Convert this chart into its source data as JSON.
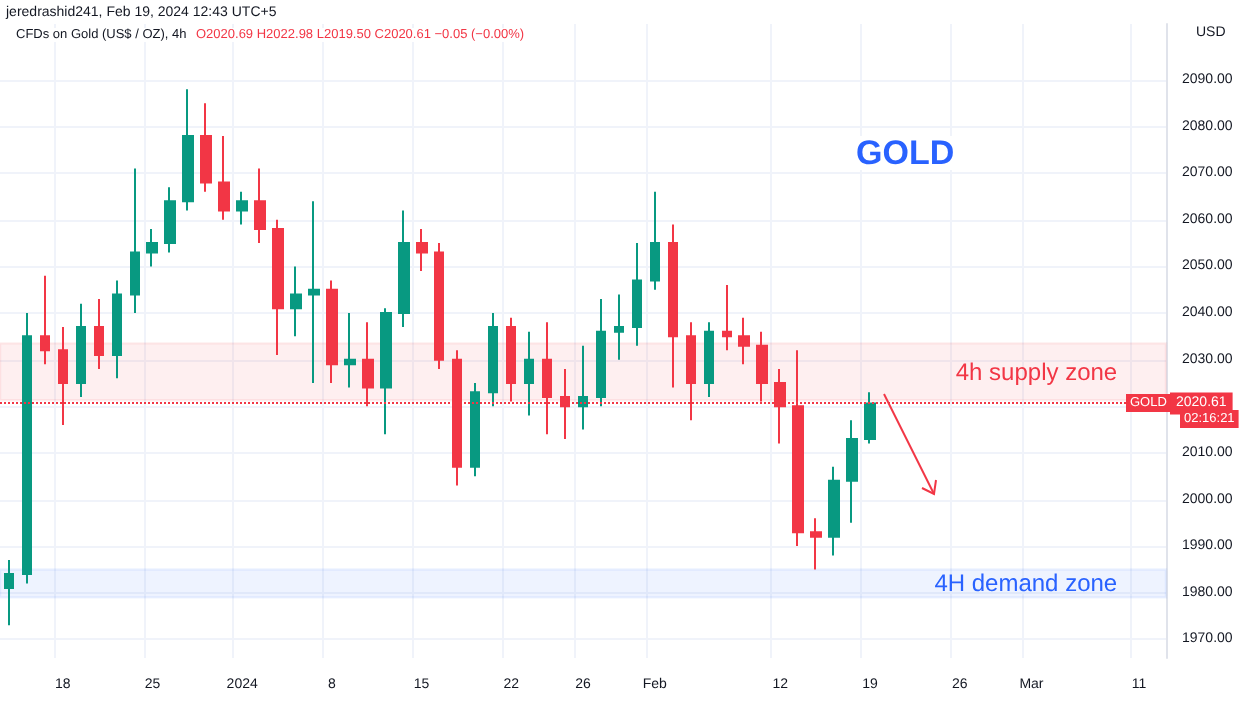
{
  "chart_data": {
    "type": "candlestick",
    "title": "CFDs on Gold (US$ / OZ), 4h",
    "annotations": [
      "jeredrashid241, Feb 19, 2024 12:43 UTC+5",
      "O2020.69 H2022.98 L2019.50 C2020.61 −0.05 (−0.00%)",
      "GOLD",
      "USD",
      "GOLD",
      "02:16:21"
    ],
    "categories": [
      null,
      null,
      null,
      "18",
      null,
      null,
      null,
      null,
      "25",
      null,
      null,
      null,
      null,
      "2024",
      null,
      null,
      null,
      null,
      "8",
      null,
      null,
      null,
      null,
      "15",
      null,
      null,
      null,
      null,
      "22",
      null,
      null,
      null,
      "26",
      null,
      null,
      null,
      "Feb",
      null,
      null,
      null,
      null,
      null,
      null,
      "12",
      null,
      null,
      null,
      null,
      "19",
      null,
      null,
      null,
      null,
      "26",
      null,
      null,
      null,
      "Mar",
      null,
      null,
      null,
      null,
      null,
      "11",
      null
    ],
    "ohlc": [
      [
        1981,
        1987,
        1973,
        1984
      ],
      [
        1984,
        2040,
        1982,
        2035
      ],
      [
        2035,
        2048,
        2029,
        2032
      ],
      [
        2032,
        2037,
        2016,
        2025
      ],
      [
        2025,
        2042,
        2022,
        2037
      ],
      [
        2037,
        2043,
        2028,
        2031
      ],
      [
        2031,
        2047,
        2026,
        2044
      ],
      [
        2044,
        2071,
        2040,
        2053
      ],
      [
        2053,
        2058,
        2050,
        2055
      ],
      [
        2055,
        2067,
        2053,
        2064
      ],
      [
        2064,
        2088,
        2062,
        2078
      ],
      [
        2078,
        2085,
        2066,
        2068
      ],
      [
        2068,
        2078,
        2060,
        2062
      ],
      [
        2062,
        2066,
        2059,
        2064
      ],
      [
        2064,
        2071,
        2055,
        2058
      ],
      [
        2058,
        2060,
        2031,
        2041
      ],
      [
        2041,
        2050,
        2035,
        2044
      ],
      [
        2044,
        2064,
        2025,
        2045
      ],
      [
        2045,
        2047,
        2025,
        2029
      ],
      [
        2029,
        2040,
        2024,
        2030
      ],
      [
        2030,
        2038,
        2020,
        2024
      ],
      [
        2024,
        2041,
        2014,
        2040
      ],
      [
        2040,
        2062,
        2037,
        2055
      ],
      [
        2055,
        2058,
        2049,
        2053
      ],
      [
        2053,
        2055,
        2028,
        2030
      ],
      [
        2030,
        2032,
        2003,
        2007
      ],
      [
        2007,
        2025,
        2005,
        2023
      ],
      [
        2023,
        2040,
        2020,
        2037
      ],
      [
        2037,
        2039,
        2021,
        2025
      ],
      [
        2025,
        2036,
        2018,
        2030
      ],
      [
        2030,
        2038,
        2014,
        2022
      ],
      [
        2022,
        2028,
        2013,
        2020
      ],
      [
        2020,
        2033,
        2015,
        2022
      ],
      [
        2022,
        2043,
        2020,
        2036
      ],
      [
        2036,
        2044,
        2030,
        2037
      ],
      [
        2037,
        2055,
        2033,
        2047
      ],
      [
        2047,
        2066,
        2045,
        2055
      ],
      [
        2055,
        2059,
        2024,
        2035
      ],
      [
        2035,
        2038,
        2017,
        2025
      ],
      [
        2025,
        2038,
        2022,
        2036
      ],
      [
        2036,
        2046,
        2032,
        2035
      ],
      [
        2035,
        2039,
        2029,
        2033
      ],
      [
        2033,
        2036,
        2021,
        2025
      ],
      [
        2025,
        2028,
        2012,
        2020
      ],
      [
        2020,
        2032,
        1990,
        1993
      ],
      [
        1993,
        1996,
        1985,
        1992
      ],
      [
        1992,
        2007,
        1988,
        2004
      ],
      [
        2004,
        2017,
        1995,
        2013
      ],
      [
        2013,
        2023,
        2012,
        2020.61
      ],
      null,
      null,
      null,
      null,
      null,
      null,
      null,
      null,
      null,
      null,
      null,
      null,
      null,
      null,
      null,
      null
    ],
    "ylim": [
      1966,
      2102
    ],
    "yticks": [
      {
        "value": 1970,
        "label": "1970.00"
      },
      {
        "value": 1980,
        "label": "1980.00"
      },
      {
        "value": 1990,
        "label": "1990.00"
      },
      {
        "value": 2000,
        "label": "2000.00"
      },
      {
        "value": 2010,
        "label": "2010.00"
      },
      {
        "value": 2020,
        "label": null
      },
      {
        "value": 2030,
        "label": "2030.00"
      },
      {
        "value": 2040,
        "label": "2040.00"
      },
      {
        "value": 2050,
        "label": "2050.00"
      },
      {
        "value": 2060,
        "label": "2060.00"
      },
      {
        "value": 2070,
        "label": "2070.00"
      },
      {
        "value": 2080,
        "label": "2080.00"
      },
      {
        "value": 2090,
        "label": "2090.00"
      }
    ],
    "grid": true,
    "bands": [
      {
        "axis": "y",
        "from": 2021.3,
        "to": 2033.5,
        "label": "4h supply zone",
        "color": "#f23645"
      },
      {
        "axis": "y",
        "from": 1979,
        "to": 1985,
        "label": "4H demand zone",
        "color": "#2962ff"
      }
    ],
    "ref_lines": [
      {
        "axis": "y",
        "value": 2020.61,
        "label": "2020.61",
        "color": "#f23645",
        "line_style": "dotted"
      }
    ]
  }
}
